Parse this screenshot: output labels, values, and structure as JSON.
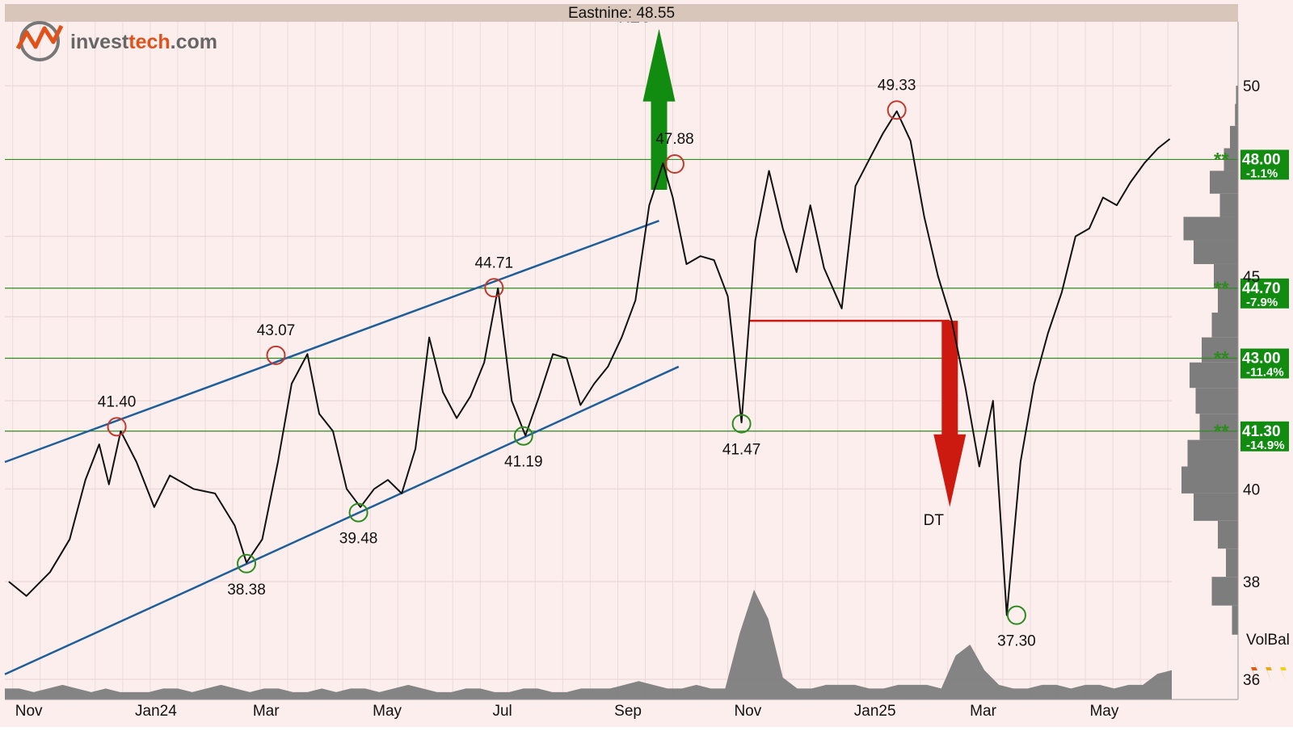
{
  "header": {
    "title": "Eastnine: 48.55"
  },
  "logo": {
    "text_main": "invest",
    "text_accent": "tech",
    "text_suffix": ".com"
  },
  "colors": {
    "background": "#fdeeee",
    "header_bg": "#d9c6ba",
    "price_up": "#c0392b",
    "price_down": "#2e8b1f",
    "price": "#111111",
    "channel": "#1f5f99",
    "support_line": "#2e8b1f",
    "buy_arrow": "#118c11",
    "sell_arrow": "#cc1a10",
    "volume": "#7d7d7d",
    "level_box": "#118c11"
  },
  "volbal": {
    "label": "VolBal"
  },
  "signals": [
    {
      "label": "REC",
      "type": "buy",
      "date": "2024-09-25",
      "from": 47.2,
      "to": 51.6
    },
    {
      "label": "DT",
      "type": "sell",
      "date": "2025-02-20",
      "from": 43.9,
      "to": 39.6
    }
  ],
  "chart_data": {
    "type": "line",
    "title": "Eastnine: 48.55",
    "ylim": [
      35.6,
      51.8
    ],
    "xlim": [
      "2023-10-28",
      "2025-06-13"
    ],
    "ytick_labels": [
      "36",
      "38",
      "40",
      "45",
      "50"
    ],
    "ytick_values": [
      36,
      38,
      40,
      45,
      50
    ],
    "xtick_labels": [
      "Nov",
      "Jan24",
      "Mar",
      "May",
      "Jul",
      "Sep",
      "Nov",
      "Jan25",
      "Mar",
      "May"
    ],
    "xtick_dates": [
      "2023-11-01",
      "2024-01-01",
      "2024-03-01",
      "2024-05-01",
      "2024-07-01",
      "2024-09-01",
      "2024-11-01",
      "2025-01-01",
      "2025-03-01",
      "2025-05-01"
    ],
    "grid": true,
    "series": [
      {
        "x": [
          "2023-10-30",
          "2023-11-08",
          "2023-11-20",
          "2023-11-30",
          "2023-12-08",
          "2023-12-15",
          "2023-12-20",
          "2023-12-26",
          "2024-01-03",
          "2024-01-12",
          "2024-01-20",
          "2024-02-01",
          "2024-02-12",
          "2024-02-22",
          "2024-02-28",
          "2024-03-07",
          "2024-03-15",
          "2024-03-22",
          "2024-03-30",
          "2024-04-05",
          "2024-04-12",
          "2024-04-19",
          "2024-04-26",
          "2024-05-03",
          "2024-05-10",
          "2024-05-17",
          "2024-05-24",
          "2024-05-31",
          "2024-06-07",
          "2024-06-14",
          "2024-06-21",
          "2024-06-28",
          "2024-07-05",
          "2024-07-12",
          "2024-07-19",
          "2024-07-26",
          "2024-08-02",
          "2024-08-09",
          "2024-08-16",
          "2024-08-23",
          "2024-08-30",
          "2024-09-06",
          "2024-09-13",
          "2024-09-20",
          "2024-09-27",
          "2024-10-02",
          "2024-10-09",
          "2024-10-16",
          "2024-10-23",
          "2024-10-30",
          "2024-11-06",
          "2024-11-13",
          "2024-11-20",
          "2024-11-27",
          "2024-12-04",
          "2024-12-11",
          "2024-12-18",
          "2024-12-27",
          "2025-01-03",
          "2025-01-10",
          "2025-01-17",
          "2025-01-24",
          "2025-01-31",
          "2025-02-07",
          "2025-02-14",
          "2025-02-21",
          "2025-02-28",
          "2025-03-07",
          "2025-03-14",
          "2025-03-21",
          "2025-03-28",
          "2025-04-04",
          "2025-04-11",
          "2025-04-18",
          "2025-04-25",
          "2025-05-02",
          "2025-05-09",
          "2025-05-16",
          "2025-05-23",
          "2025-05-30",
          "2025-06-06",
          "2025-06-12"
        ],
        "y": [
          38.0,
          37.7,
          38.2,
          38.9,
          40.2,
          41.0,
          40.1,
          41.3,
          40.6,
          39.6,
          40.3,
          40.0,
          39.9,
          39.2,
          38.4,
          38.9,
          40.6,
          42.4,
          43.1,
          41.7,
          41.3,
          40.0,
          39.6,
          40.0,
          40.2,
          39.9,
          40.9,
          43.5,
          42.2,
          41.6,
          42.1,
          42.9,
          44.7,
          42.0,
          41.2,
          42.1,
          43.1,
          43.0,
          41.9,
          42.4,
          42.8,
          43.5,
          44.4,
          46.8,
          47.9,
          47.0,
          45.3,
          45.5,
          45.4,
          44.5,
          41.5,
          45.9,
          47.7,
          46.2,
          45.1,
          46.8,
          45.2,
          44.2,
          47.3,
          48.0,
          48.7,
          49.3,
          48.5,
          46.5,
          45.0,
          43.9,
          42.3,
          40.5,
          42.0,
          37.3,
          40.6,
          42.4,
          43.6,
          44.6,
          46.0,
          46.2,
          47.0,
          46.8,
          47.4,
          47.9,
          48.3,
          48.55
        ]
      }
    ],
    "trend_channel": {
      "upper": [
        [
          "2023-10-28",
          40.6
        ],
        [
          "2024-09-25",
          46.4
        ]
      ],
      "lower": [
        [
          "2023-10-28",
          36.1
        ],
        [
          "2024-10-05",
          42.8
        ]
      ]
    },
    "horizontal_levels": [
      {
        "value": 48.0,
        "label": "48.00",
        "pct": "-1.1%"
      },
      {
        "value": 44.7,
        "label": "44.70",
        "pct": "-7.9%"
      },
      {
        "value": 43.0,
        "label": "43.00",
        "pct": "-11.4%"
      },
      {
        "value": 41.3,
        "label": "41.30",
        "pct": "-14.9%"
      }
    ],
    "neckline": {
      "from": "2024-11-10",
      "to": "2025-02-20",
      "value": 43.9
    },
    "tops": [
      {
        "date": "2023-12-24",
        "value": 41.4,
        "label": "41.40"
      },
      {
        "date": "2024-03-14",
        "value": 43.07,
        "label": "43.07"
      },
      {
        "date": "2024-07-03",
        "value": 44.71,
        "label": "44.71"
      },
      {
        "date": "2024-10-03",
        "value": 47.88,
        "label": "47.88"
      },
      {
        "date": "2025-01-24",
        "value": 49.33,
        "label": "49.33"
      }
    ],
    "bottoms": [
      {
        "date": "2024-02-28",
        "value": 38.38,
        "label": "38.38"
      },
      {
        "date": "2024-04-25",
        "value": 39.48,
        "label": "39.48"
      },
      {
        "date": "2024-07-18",
        "value": 41.19,
        "label": "41.19"
      },
      {
        "date": "2024-11-06",
        "value": 41.47,
        "label": "41.47"
      },
      {
        "date": "2025-03-26",
        "value": 37.3,
        "label": "37.30"
      }
    ],
    "volume": [
      3,
      3,
      2,
      3,
      4,
      3,
      2,
      3,
      2,
      2,
      2,
      3,
      3,
      2,
      3,
      4,
      3,
      2,
      3,
      3,
      2,
      2,
      3,
      2,
      3,
      3,
      2,
      3,
      4,
      3,
      2,
      2,
      3,
      3,
      2,
      2,
      3,
      3,
      2,
      2,
      3,
      3,
      3,
      4,
      5,
      4,
      3,
      3,
      4,
      3,
      3,
      18,
      30,
      22,
      6,
      3,
      3,
      4,
      4,
      4,
      3,
      3,
      4,
      4,
      4,
      3,
      12,
      15,
      8,
      4,
      3,
      3,
      4,
      4,
      3,
      4,
      4,
      3,
      4,
      4,
      7,
      8
    ],
    "volume_profile": [
      {
        "value": 49.7,
        "size": 0.1
      },
      {
        "value": 49.2,
        "size": 0.15
      },
      {
        "value": 48.6,
        "size": 0.4
      },
      {
        "value": 48.0,
        "size": 0.7
      },
      {
        "value": 47.4,
        "size": 1.4
      },
      {
        "value": 46.8,
        "size": 0.9
      },
      {
        "value": 46.2,
        "size": 2.7
      },
      {
        "value": 45.6,
        "size": 2.2
      },
      {
        "value": 45.0,
        "size": 1.2
      },
      {
        "value": 44.4,
        "size": 1.0
      },
      {
        "value": 43.8,
        "size": 1.3
      },
      {
        "value": 43.2,
        "size": 1.8
      },
      {
        "value": 42.6,
        "size": 2.4
      },
      {
        "value": 42.0,
        "size": 2.1
      },
      {
        "value": 41.4,
        "size": 1.9
      },
      {
        "value": 40.8,
        "size": 2.5
      },
      {
        "value": 40.2,
        "size": 2.8
      },
      {
        "value": 39.6,
        "size": 2.2
      },
      {
        "value": 39.0,
        "size": 1.0
      },
      {
        "value": 38.4,
        "size": 0.6
      },
      {
        "value": 37.8,
        "size": 1.3
      },
      {
        "value": 37.2,
        "size": 0.3
      }
    ]
  }
}
